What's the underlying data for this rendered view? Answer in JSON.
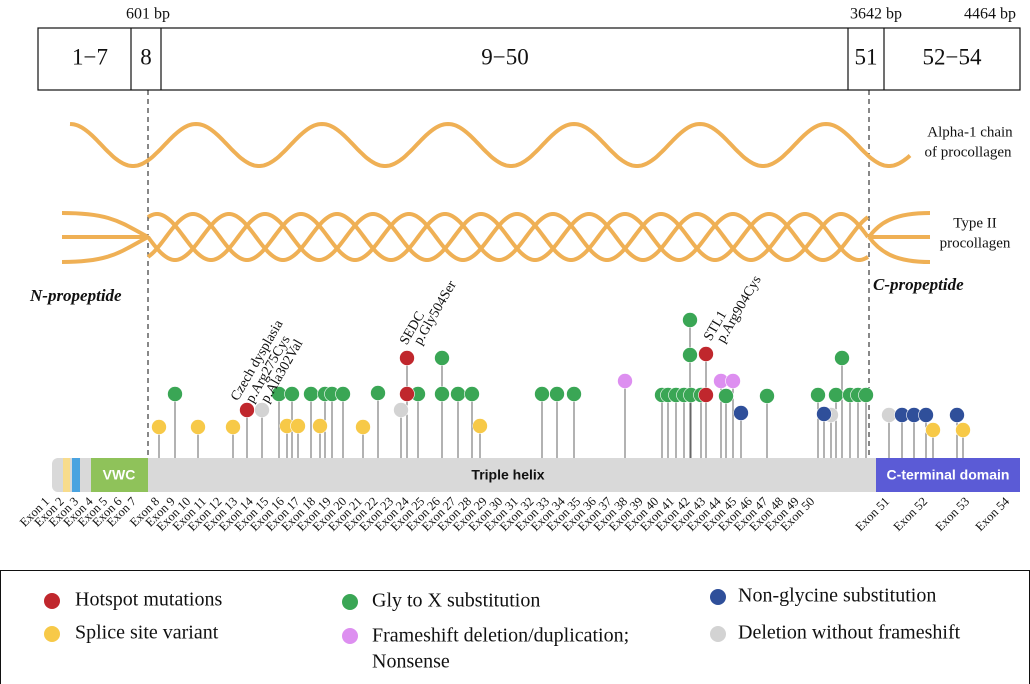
{
  "scale": {
    "labels": [
      "601 bp",
      "3642 bp",
      "4464 bp"
    ]
  },
  "exon_boxes": [
    "1−7",
    "8",
    "9−50",
    "51",
    "52−54"
  ],
  "chain": {
    "alpha": [
      "Alpha-1 chain",
      "of procollagen"
    ],
    "type2": [
      "Type II",
      "procollagen"
    ],
    "n_propeptide": "N-propeptide",
    "c_propeptide": "C-propeptide"
  },
  "annotations": {
    "czech": [
      "Czech dysplasia",
      "p.Arg275Cys",
      "p.Ala302Val"
    ],
    "sedc": [
      "SEDC",
      "p.Gly504Ser"
    ],
    "stl1": [
      "STL1",
      "p.Arg904Cys"
    ]
  },
  "domains": [
    "VWC",
    "Triple helix",
    "C-terminal domain"
  ],
  "exons": [
    "Exon 1",
    "Exon 2",
    "Exon 3",
    "Exon 4",
    "Exon 5",
    "Exon 6",
    "Exon 7",
    "Exon 8",
    "Exon 9",
    "Exon 10",
    "Exon 11",
    "Exon 12",
    "Exon 13",
    "Exon 14",
    "Exon 15",
    "Exon 16",
    "Exon 17",
    "Exon 18",
    "Exon 19",
    "Exon 20",
    "Exon 21",
    "Exon 22",
    "Exon 23",
    "Exon 24",
    "Exon 25",
    "Exon 26",
    "Exon 27",
    "Exon 28",
    "Exon 29",
    "Exon 30",
    "Exon 31",
    "Exon 32",
    "Exon 33",
    "Exon 34",
    "Exon 35",
    "Exon 36",
    "Exon 37",
    "Exon 38",
    "Exon 39",
    "Exon 40",
    "Exon 41",
    "Exon 42",
    "Exon 43",
    "Exon 44",
    "Exon 45",
    "Exon 46",
    "Exon 47",
    "Exon 48",
    "Exon 49",
    "Exon 50",
    "Exon 51",
    "Exon 52",
    "Exon 53",
    "Exon 54"
  ],
  "legend": [
    "Hotspot mutations",
    "Splice site variant",
    "Gly to X substitution",
    "Frameshift deletion/duplication;",
    "Nonsense",
    "Non-glycine substitution",
    "Deletion without frameshift"
  ]
}
